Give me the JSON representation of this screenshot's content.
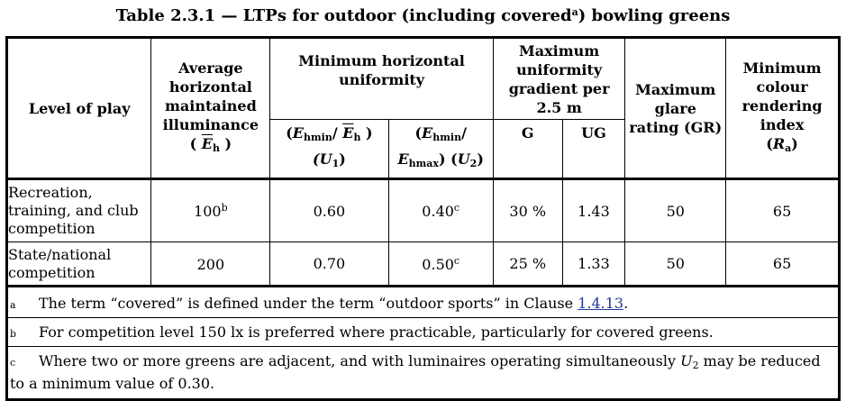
{
  "title": {
    "text": "Table 2.3.1 — LTPs for outdoor (including covered",
    "sup": "a",
    "text_end": ") bowling greens"
  },
  "header": {
    "level": "Level of play",
    "avg": "Average horizontal maintained illuminance",
    "avg_sym_open": "(",
    "avg_sym": "E",
    "avg_sym_sub": "h",
    "avg_sym_close": ")",
    "min_unif": "Minimum horizontal uniformity",
    "u1_open": "(",
    "u1_e": "E",
    "u1_sub": "hmin",
    "u1_slash": "/ ",
    "u1_bar": "E",
    "u1_bar_sub": "h",
    "u1_close": " )",
    "u1_sym": "(U",
    "u1_sym_sub": "1",
    "u1_sym_close": ")",
    "u2_open": "(",
    "u2_e": "E",
    "u2_sub": "hmin",
    "u2_slash": "/",
    "u2_e2": "E",
    "u2_sub2": "hmax",
    "u2_close": ") (",
    "u2_u": "U",
    "u2_u_sub": "2",
    "u2_end": ")",
    "grad": "Maximum uniformity gradient per 2.5 m",
    "g": "G",
    "ug": "UG",
    "glare": "Maximum glare rating (GR)",
    "cri": "Minimum colour rendering index",
    "cri_open": "(",
    "cri_r": "R",
    "cri_sub": "a",
    "cri_close": ")"
  },
  "rows": [
    {
      "level": "Recreation, training, and club competition",
      "avg": "100",
      "avg_note": "b",
      "u1": "0.60",
      "u2": "0.40",
      "u2_note": "c",
      "g": "30 %",
      "ug": "1.43",
      "gr": "50",
      "ra": "65"
    },
    {
      "level": "State/national competition",
      "avg": "200",
      "avg_note": "",
      "u1": "0.70",
      "u2": "0.50",
      "u2_note": "c",
      "g": "25 %",
      "ug": "1.33",
      "gr": "50",
      "ra": "65"
    }
  ],
  "notes": {
    "a_marker": "a",
    "a_text": "The term “covered” is defined under the term “outdoor sports” in Clause ",
    "a_link": "1.4.13",
    "a_end": ".",
    "b_marker": "b",
    "b_text": "For competition level 150 lx is preferred where practicable, particularly for covered greens.",
    "c_marker": "c",
    "c_text": "Where two or more greens are adjacent, and with luminaires operating simultaneously ",
    "c_u": "U",
    "c_u_sub": "2",
    "c_end": " may be reduced to a minimum value of 0.30."
  }
}
